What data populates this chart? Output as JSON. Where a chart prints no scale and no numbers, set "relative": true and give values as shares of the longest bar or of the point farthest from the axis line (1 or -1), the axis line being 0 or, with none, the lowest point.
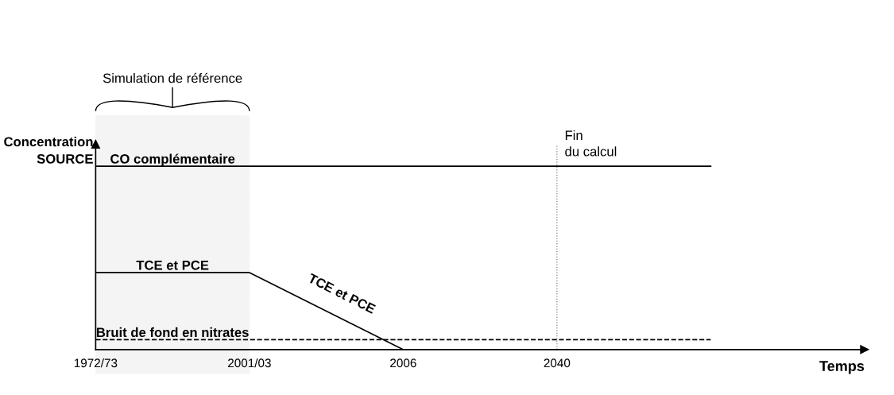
{
  "chart_data": {
    "type": "line",
    "relative": true,
    "ylabel": "Concentration\nSOURCE",
    "xlabel": "Temps",
    "categories": [
      "1972/73",
      "2001/03",
      "2006",
      "2040",
      null
    ],
    "series": [
      {
        "name": "CO complémentaire",
        "color": "#000000",
        "values": [
          1,
          1,
          1,
          1,
          1
        ]
      },
      {
        "name": "TCE et PCE",
        "color": "#000000",
        "values": [
          0.42,
          0.42,
          0,
          null,
          null
        ]
      },
      {
        "name": "Bruit de fond en nitrates",
        "color": "#000000",
        "values": [
          0.054,
          0.054,
          0.054,
          0.054,
          0.054
        ],
        "line_style": "dashed"
      }
    ],
    "annotations": [
      "TCE et PCE"
    ],
    "ref_lines": [
      {
        "axis": "x",
        "value": "2040",
        "label": "Fin\ndu calcul",
        "color": "#808080",
        "line_style": "dotted"
      }
    ],
    "bands": [
      {
        "axis": "x",
        "from": "1972/73",
        "to": "2001/03",
        "label": "Simulation de référence",
        "color": "#808080"
      }
    ],
    "legend": false,
    "grid": false,
    "marker": "none",
    "line_style": "solid"
  }
}
